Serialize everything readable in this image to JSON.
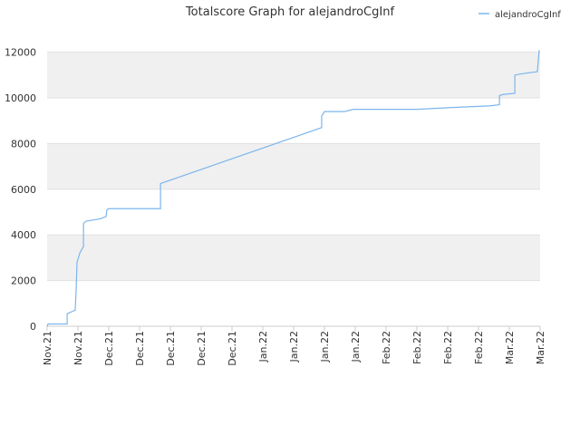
{
  "chart_data": {
    "type": "line",
    "title": "Totalscore Graph for alejandroCgInf",
    "xlim": [
      0,
      16
    ],
    "xticks": [
      {
        "value": 0,
        "label": "Nov.21"
      },
      {
        "value": 1,
        "label": "Nov.21"
      },
      {
        "value": 2,
        "label": "Dec.21"
      },
      {
        "value": 3,
        "label": "Dec.21"
      },
      {
        "value": 4,
        "label": "Dec.21"
      },
      {
        "value": 5,
        "label": "Dec.21"
      },
      {
        "value": 6,
        "label": "Dec.21"
      },
      {
        "value": 7,
        "label": "Jan.22"
      },
      {
        "value": 8,
        "label": "Jan.22"
      },
      {
        "value": 9,
        "label": "Jan.22"
      },
      {
        "value": 10,
        "label": "Jan.22"
      },
      {
        "value": 11,
        "label": "Feb.22"
      },
      {
        "value": 12,
        "label": "Feb.22"
      },
      {
        "value": 13,
        "label": "Feb.22"
      },
      {
        "value": 14,
        "label": "Feb.22"
      },
      {
        "value": 15,
        "label": "Mar.22"
      },
      {
        "value": 16,
        "label": "Mar.22"
      }
    ],
    "ylim": [
      0,
      12700
    ],
    "yticks": [
      0,
      2000,
      4000,
      6000,
      8000,
      10000,
      12000
    ],
    "grid": true,
    "legend": "top-right",
    "series": [
      {
        "name": "alejandroCgInf",
        "color": "#7cb5ec",
        "x": [
          0,
          0.03,
          0.65,
          0.65,
          0.82,
          0.91,
          0.94,
          0.97,
          1.06,
          1.18,
          1.18,
          1.26,
          1.71,
          1.91,
          1.94,
          2.0,
          3.68,
          3.68,
          8.91,
          8.91,
          9.0,
          9.65,
          9.94,
          12.0,
          13.47,
          14.35,
          14.68,
          14.68,
          14.79,
          15.18,
          15.18,
          15.38,
          15.91,
          15.97
        ],
        "values": [
          0,
          100,
          100,
          550,
          650,
          700,
          1500,
          2800,
          3200,
          3500,
          4500,
          4600,
          4700,
          4800,
          5100,
          5150,
          5150,
          6250,
          8700,
          9200,
          9400,
          9400,
          9500,
          9500,
          9600,
          9650,
          9700,
          10100,
          10150,
          10200,
          11000,
          11050,
          11150,
          12100
        ]
      }
    ]
  }
}
